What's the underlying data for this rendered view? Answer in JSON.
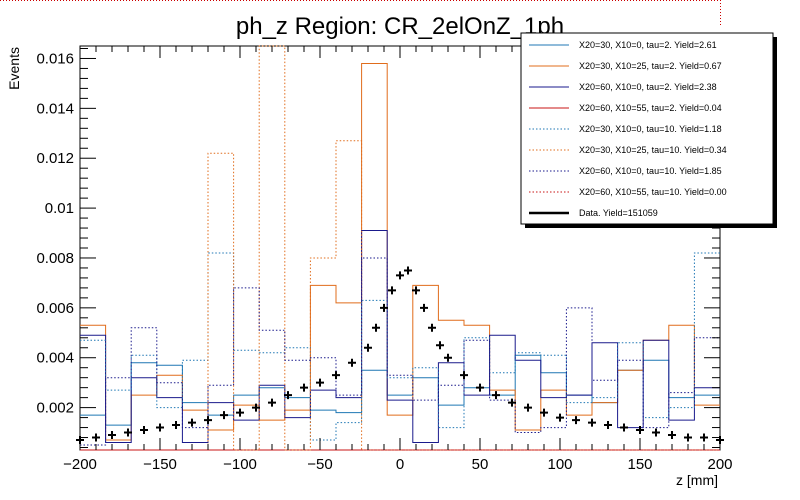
{
  "chart_data": {
    "type": "histogram",
    "title": "ph_z Region: CR_2elOnZ_1ph",
    "xlabel": "z [mm]",
    "ylabel": "Events",
    "xlim": [
      -200,
      200
    ],
    "ylim": [
      0.0003,
      0.0165
    ],
    "bin_width": 16,
    "xticks": [
      -200,
      -150,
      -100,
      -50,
      0,
      50,
      100,
      150,
      200
    ],
    "xtick_labels": [
      "−200",
      "−150",
      "−100",
      "−50",
      "0",
      "50",
      "100",
      "150",
      "200"
    ],
    "yticks": [
      0.002,
      0.004,
      0.006,
      0.008,
      0.01,
      0.012,
      0.014,
      0.016
    ],
    "ytick_labels": [
      "0.002",
      "0.004",
      "0.006",
      "0.008",
      "0.01",
      "0.012",
      "0.014",
      "0.016"
    ],
    "series": [
      {
        "name": "X20=30, X10=0, tau=2. Yield=2.61",
        "color": "#1f77b4",
        "style": "solid",
        "values": [
          0.0017,
          0.0013,
          0.0038,
          0.0037,
          0.0022,
          0.0017,
          0.0025,
          0.0028,
          0.0024,
          0.0019,
          0.0018,
          0.0035,
          0.0025,
          0.0032,
          0.0021,
          0.0028,
          0.0025,
          0.0041,
          0.0034,
          0.0025,
          0.0022,
          0.0035,
          0.0039,
          0.0024,
          0.0025
        ]
      },
      {
        "name": "X20=30, X10=25, tau=2. Yield=0.67",
        "color": "#e06c1b",
        "style": "solid",
        "values": [
          0.0053,
          0.0007,
          0.0025,
          0.0033,
          0.0019,
          0.0011,
          0.0021,
          0.0015,
          0.0019,
          0.0069,
          0.0062,
          0.0158,
          0.0017,
          0.0069,
          0.0055,
          0.0053,
          0.0027,
          0.0011,
          0.0027,
          0.0017,
          0.0022,
          0.0035,
          0.0047,
          0.0053,
          0.0021
        ]
      },
      {
        "name": "X20=60, X10=0, tau=2. Yield=2.38",
        "color": "#1a1a8c",
        "style": "solid",
        "values": [
          0.0049,
          0.0006,
          0.0032,
          0.0024,
          0.0006,
          0.0022,
          0.0015,
          0.0029,
          0.0016,
          0.0027,
          0.0024,
          0.0091,
          0.0023,
          0.0006,
          0.0038,
          0.0025,
          0.0049,
          0.0039,
          0.0024,
          0.0025,
          0.0046,
          0.0012,
          0.0047,
          0.0015,
          0.0028
        ]
      },
      {
        "name": "X20=60, X10=55, tau=2. Yield=0.04",
        "color": "#c81414",
        "style": "solid",
        "values": [
          0.0003,
          0.0003,
          0.0003,
          0.0003,
          0.0003,
          0.0003,
          0.0003,
          0.0003,
          0.0003,
          0.0003,
          0.0003,
          0.0003,
          0.0003,
          0.0003,
          0.0003,
          0.0003,
          0.0003,
          0.0003,
          0.0003,
          0.0003,
          0.0003,
          0.0003,
          0.0003,
          0.0003,
          0.0003
        ]
      },
      {
        "name": "X20=30, X10=0, tau=10. Yield=1.18",
        "color": "#1f77b4",
        "style": "dotted",
        "values": [
          0.0047,
          0.0027,
          0.0041,
          0.002,
          0.0039,
          0.0082,
          0.0043,
          0.0042,
          0.0044,
          0.0007,
          0.0014,
          0.0063,
          0.0032,
          0.0036,
          0.0012,
          0.0048,
          0.0034,
          0.0042,
          0.0041,
          0.0022,
          0.0024,
          0.0046,
          0.0016,
          0.002,
          0.0082
        ]
      },
      {
        "name": "X20=30, X10=25, tau=10. Yield=0.34",
        "color": "#e06c1b",
        "style": "dotted",
        "values": [
          0.0003,
          0.0003,
          0.0003,
          0.0003,
          0.0003,
          0.0122,
          0.0003,
          0.0165,
          0.0003,
          0.008,
          0.0127,
          0.0003,
          0.0003,
          0.0003,
          0.0003,
          0.0003,
          0.0003,
          0.0003,
          0.0003,
          0.0003,
          0.0003,
          0.0003,
          0.0003,
          0.0003,
          0.0003
        ]
      },
      {
        "name": "X20=60, X10=0, tau=10. Yield=1.85",
        "color": "#1a1a8c",
        "style": "dotted",
        "values": [
          0.0005,
          0.0032,
          0.0052,
          0.003,
          0.0012,
          0.0029,
          0.0068,
          0.0051,
          0.0039,
          0.004,
          0.0025,
          0.008,
          0.0033,
          0.0023,
          0.0029,
          0.0047,
          0.0023,
          0.001,
          0.0012,
          0.006,
          0.0031,
          0.0039,
          0.0012,
          0.0026,
          0.0048
        ]
      },
      {
        "name": "X20=60, X10=55, tau=10. Yield=0.00",
        "color": "#c81414",
        "style": "dotted",
        "values": [
          0.0003,
          0.0003,
          0.0003,
          0.0003,
          0.0003,
          0.0003,
          0.0003,
          0.0003,
          0.0003,
          0.0003,
          0.0003,
          0.0003,
          0.0003,
          0.0003,
          0.0003,
          0.0003,
          0.0003,
          0.0003,
          0.0003,
          0.0003,
          0.0003,
          0.0003,
          0.0003,
          0.0003,
          0.0003
        ]
      }
    ],
    "data": {
      "name": "Data. Yield=151059",
      "color": "#000000",
      "x": [
        -200,
        -190,
        -180,
        -170,
        -160,
        -150,
        -140,
        -130,
        -120,
        -110,
        -100,
        -90,
        -80,
        -70,
        -60,
        -50,
        -40,
        -30,
        -20,
        -15,
        -10,
        -5,
        0,
        5,
        10,
        15,
        20,
        25,
        30,
        40,
        50,
        60,
        70,
        80,
        90,
        100,
        110,
        120,
        130,
        140,
        150,
        160,
        170,
        180,
        190,
        200
      ],
      "y": [
        0.0007,
        0.0008,
        0.0009,
        0.001,
        0.0011,
        0.0012,
        0.0013,
        0.0014,
        0.0015,
        0.0017,
        0.0018,
        0.002,
        0.0022,
        0.0025,
        0.0028,
        0.003,
        0.0033,
        0.0038,
        0.0044,
        0.0052,
        0.006,
        0.0067,
        0.0073,
        0.0075,
        0.0067,
        0.006,
        0.0052,
        0.0045,
        0.004,
        0.0033,
        0.0028,
        0.0025,
        0.0022,
        0.002,
        0.0018,
        0.0016,
        0.0015,
        0.0014,
        0.0013,
        0.0012,
        0.0011,
        0.001,
        0.0009,
        0.0008,
        0.0008,
        0.0007
      ]
    },
    "legend_position": "top-right",
    "grid": false
  }
}
